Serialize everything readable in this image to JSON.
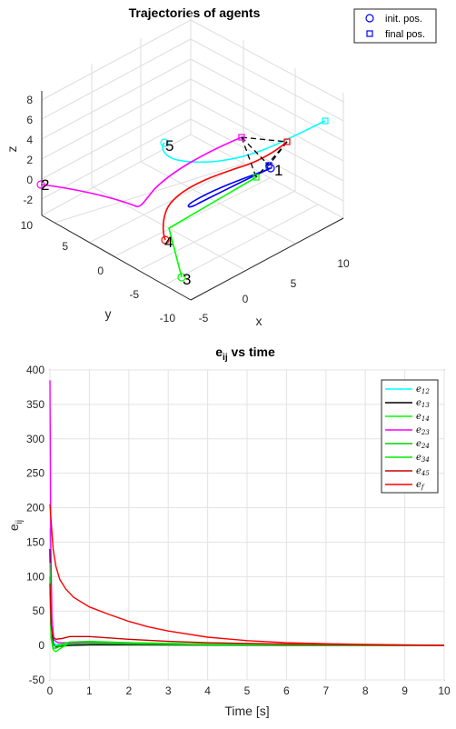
{
  "chart_data": [
    {
      "type": "line3d",
      "title": "Trajectories of agents",
      "xlabel": "x",
      "ylabel": "y",
      "zlabel": "z",
      "xlim": [
        -5,
        12
      ],
      "ylim": [
        -10,
        10
      ],
      "zlim": [
        -4,
        10
      ],
      "x_ticks": [
        "-5",
        "0",
        "5",
        "10"
      ],
      "y_ticks": [
        "-10",
        "-5",
        "0",
        "5",
        "10"
      ],
      "z_ticks": [
        "-2",
        "0",
        "2",
        "4",
        "6",
        "8"
      ],
      "grid": true,
      "legend": {
        "position": "top-right",
        "entries": [
          {
            "label": "init. pos.",
            "marker": "circle",
            "color": "#0000ff"
          },
          {
            "label": "final pos.",
            "marker": "square",
            "color": "#0000ff"
          }
        ]
      },
      "agents": [
        {
          "label": "1",
          "color": "#0000ff"
        },
        {
          "label": "2",
          "color": "#ff00ff"
        },
        {
          "label": "3",
          "color": "#00ff00"
        },
        {
          "label": "4",
          "color": "#ff0000"
        },
        {
          "label": "5",
          "color": "#00ffff"
        }
      ],
      "final_formation_color": "#000000"
    },
    {
      "type": "line",
      "title": "e",
      "title_sub": "ij",
      "title_suffix": " vs time",
      "xlabel": "Time [s]",
      "ylabel": "e",
      "ylabel_sub": "ij",
      "xlim": [
        0,
        10
      ],
      "ylim": [
        -50,
        400
      ],
      "x_ticks": [
        "0",
        "1",
        "2",
        "3",
        "4",
        "5",
        "6",
        "7",
        "8",
        "9",
        "10"
      ],
      "y_ticks": [
        "-50",
        "0",
        "50",
        "100",
        "150",
        "200",
        "250",
        "300",
        "350",
        "400"
      ],
      "grid": true,
      "legend": {
        "position": "top-right"
      },
      "series": [
        {
          "name": "e",
          "sub": "12",
          "color": "#00ffff",
          "x": [
            0,
            0.03,
            0.08,
            0.15,
            0.3,
            0.5,
            1,
            2,
            4,
            6,
            8,
            10
          ],
          "y": [
            170,
            30,
            5,
            1,
            2,
            3,
            3,
            2,
            1,
            0.5,
            0.2,
            0
          ]
        },
        {
          "name": "e",
          "sub": "13",
          "color": "#000000",
          "x": [
            0,
            0.03,
            0.08,
            0.15,
            0.3,
            0.5,
            1,
            2,
            4,
            6,
            8,
            10
          ],
          "y": [
            140,
            25,
            2,
            -2,
            -1,
            0,
            1,
            1,
            0.5,
            0.2,
            0.1,
            0
          ]
        },
        {
          "name": "e",
          "sub": "14",
          "color": "#00ff00",
          "x": [
            0,
            0.03,
            0.08,
            0.15,
            0.3,
            0.5,
            1,
            2,
            4,
            6,
            8,
            10
          ],
          "y": [
            120,
            15,
            -6,
            -9,
            -3,
            3,
            5,
            4,
            2,
            1,
            0.3,
            0
          ]
        },
        {
          "name": "e",
          "sub": "23",
          "color": "#ff00ff",
          "x": [
            0,
            0.02,
            0.05,
            0.1,
            0.2,
            0.4,
            0.8,
            1.5,
            3,
            5,
            8,
            10
          ],
          "y": [
            385,
            150,
            40,
            8,
            4,
            4,
            4,
            3,
            2,
            1,
            0.3,
            0
          ]
        },
        {
          "name": "e",
          "sub": "24",
          "color": "#00d000",
          "x": [
            0,
            0.03,
            0.08,
            0.15,
            0.3,
            0.5,
            1,
            2,
            4,
            6,
            8,
            10
          ],
          "y": [
            100,
            10,
            -4,
            -4,
            0,
            2,
            3,
            2,
            1,
            0.5,
            0.2,
            0
          ]
        },
        {
          "name": "e",
          "sub": "34",
          "color": "#00ee00",
          "x": [
            0,
            0.03,
            0.08,
            0.15,
            0.3,
            0.5,
            1,
            2,
            4,
            6,
            8,
            10
          ],
          "y": [
            80,
            12,
            0,
            -1,
            2,
            5,
            6,
            4,
            2,
            1,
            0.3,
            0
          ]
        },
        {
          "name": "e",
          "sub": "45",
          "color": "#cc0000",
          "x": [
            0,
            0.03,
            0.08,
            0.15,
            0.3,
            0.5,
            1,
            1.5,
            2,
            3,
            4,
            6,
            8,
            10
          ],
          "y": [
            90,
            30,
            12,
            9,
            10,
            13,
            13,
            11,
            9,
            6,
            4,
            2,
            1,
            0
          ]
        },
        {
          "name": "e",
          "sub": "f",
          "color": "#ff0000",
          "x": [
            0,
            0.03,
            0.08,
            0.15,
            0.25,
            0.4,
            0.6,
            1,
            1.5,
            2,
            2.5,
            3,
            4,
            5,
            6,
            7,
            8,
            9,
            10
          ],
          "y": [
            205,
            180,
            140,
            115,
            96,
            82,
            70,
            56,
            45,
            35,
            27,
            21,
            12,
            7,
            4,
            2.5,
            1.5,
            0.8,
            0.3
          ]
        }
      ]
    }
  ]
}
